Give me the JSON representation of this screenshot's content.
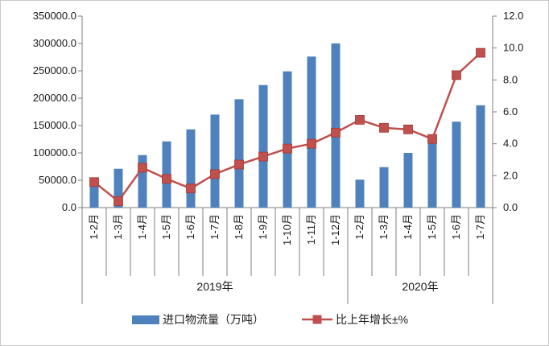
{
  "chart_data": {
    "type": "bar",
    "categories": [
      "1-2月",
      "1-3月",
      "1-4月",
      "1-5月",
      "1-6月",
      "1-7月",
      "1-8月",
      "1-9月",
      "1-10月",
      "1-11月",
      "1-12月",
      "1-2月",
      "1-3月",
      "1-4月",
      "1-5月",
      "1-6月",
      "1-7月"
    ],
    "groups": [
      {
        "label": "2019年",
        "count": 11
      },
      {
        "label": "2020年",
        "count": 6
      }
    ],
    "series": [
      {
        "name": "进口物流量（万吨）",
        "kind": "bar",
        "axis": "left",
        "color": "#4f81bd",
        "values": [
          44000,
          71000,
          96000,
          121000,
          143000,
          170000,
          198000,
          224000,
          249000,
          276000,
          300000,
          51000,
          74000,
          100000,
          128000,
          157000,
          187000
        ]
      },
      {
        "name": "比上年增长±%",
        "kind": "line",
        "axis": "right",
        "color": "#c0504d",
        "values": [
          1.6,
          0.4,
          2.5,
          1.8,
          1.2,
          2.1,
          2.7,
          3.2,
          3.7,
          4.0,
          4.7,
          5.5,
          5.0,
          4.9,
          4.3,
          8.3,
          9.7
        ]
      }
    ],
    "left_axis": {
      "min": 0,
      "max": 350000,
      "step": 50000,
      "tick_labels": [
        "0.0",
        "50000.0",
        "100000.0",
        "150000.0",
        "200000.0",
        "250000.0",
        "300000.0",
        "350000.0"
      ]
    },
    "right_axis": {
      "min": 0,
      "max": 12,
      "step": 2,
      "tick_labels": [
        "0.0",
        "2.0",
        "4.0",
        "6.0",
        "8.0",
        "10.0",
        "12.0"
      ]
    },
    "grid": false,
    "legend_position": "bottom"
  }
}
